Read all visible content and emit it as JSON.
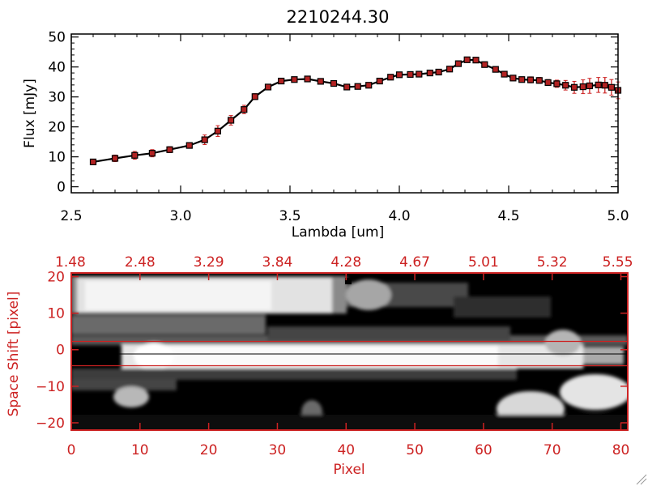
{
  "colors": {
    "background": "#ffffff",
    "axis_black": "#000000",
    "accent_red": "#cc2222",
    "marker_fill": "#b22222"
  },
  "chart_data": [
    {
      "type": "line",
      "title": "2210244.30",
      "xlabel": "Lambda [um]",
      "ylabel": "Flux [mJy]",
      "xlim": [
        2.5,
        5.0
      ],
      "ylim": [
        -2,
        51
      ],
      "xticks": [
        2.5,
        3.0,
        3.5,
        4.0,
        4.5,
        5.0
      ],
      "xtick_labels": [
        "2.5",
        "3.0",
        "3.5",
        "4.0",
        "4.5",
        "5.0"
      ],
      "yticks": [
        0,
        10,
        20,
        30,
        40,
        50
      ],
      "ytick_labels": [
        "0",
        "10",
        "20",
        "30",
        "40",
        "50"
      ],
      "series": [
        {
          "name": "Flux",
          "x": [
            2.6,
            2.7,
            2.79,
            2.87,
            2.95,
            3.04,
            3.11,
            3.17,
            3.23,
            3.29,
            3.34,
            3.4,
            3.46,
            3.52,
            3.58,
            3.64,
            3.7,
            3.76,
            3.81,
            3.86,
            3.91,
            3.96,
            4.0,
            4.05,
            4.09,
            4.14,
            4.18,
            4.23,
            4.27,
            4.31,
            4.35,
            4.39,
            4.44,
            4.48,
            4.52,
            4.56,
            4.6,
            4.64,
            4.68,
            4.72,
            4.76,
            4.8,
            4.84,
            4.87,
            4.91,
            4.94,
            4.97,
            5.0
          ],
          "y": [
            8.3,
            9.5,
            10.5,
            11.2,
            12.4,
            13.8,
            15.7,
            18.6,
            22.2,
            25.8,
            30.1,
            33.3,
            35.3,
            35.8,
            36.0,
            35.2,
            34.5,
            33.3,
            33.5,
            33.9,
            35.3,
            36.6,
            37.4,
            37.5,
            37.6,
            38.0,
            38.3,
            39.3,
            41.1,
            42.4,
            42.3,
            40.8,
            39.2,
            37.6,
            36.3,
            35.8,
            35.7,
            35.5,
            34.8,
            34.4,
            33.9,
            33.2,
            33.4,
            33.7,
            34.0,
            33.9,
            33.2,
            32.2
          ],
          "yerr": [
            0.8,
            1.1,
            1.3,
            1.2,
            1.0,
            0.9,
            1.6,
            1.8,
            1.6,
            1.4,
            1.0,
            0.8,
            0.8,
            0.8,
            0.8,
            0.8,
            0.8,
            0.8,
            0.8,
            0.8,
            0.8,
            0.8,
            0.8,
            0.8,
            0.8,
            0.8,
            0.8,
            0.8,
            0.8,
            0.8,
            0.8,
            0.8,
            0.8,
            0.8,
            0.8,
            0.8,
            1.0,
            1.0,
            1.0,
            1.2,
            1.6,
            2.0,
            2.3,
            2.5,
            2.5,
            2.6,
            2.6,
            2.8
          ]
        }
      ]
    },
    {
      "type": "heatmap",
      "xlabel": "Pixel",
      "ylabel": "Space Shift [pixel]",
      "xlim": [
        0,
        81
      ],
      "ylim": [
        -22,
        21
      ],
      "xticks": [
        0,
        10,
        20,
        30,
        40,
        50,
        60,
        70,
        80
      ],
      "xtick_labels": [
        "0",
        "10",
        "20",
        "30",
        "40",
        "50",
        "60",
        "70",
        "80"
      ],
      "yticks": [
        -20,
        -10,
        0,
        10,
        20
      ],
      "ytick_labels": [
        "−20",
        "−10",
        "0",
        "10",
        "20"
      ],
      "top_axis_labels": [
        "1.48",
        "2.48",
        "3.29",
        "3.84",
        "4.28",
        "4.67",
        "5.01",
        "5.32",
        "5.55"
      ],
      "extraction_window": [
        -3,
        3
      ],
      "trace_center": 0
    }
  ]
}
